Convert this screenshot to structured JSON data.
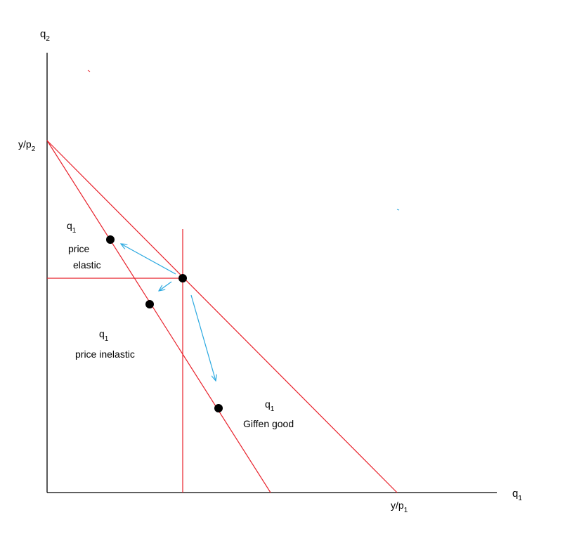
{
  "axes": {
    "y_label": {
      "base": "q",
      "sub": "2"
    },
    "x_label": {
      "base": "q",
      "sub": "1"
    },
    "y_intercept_label": {
      "base": "y/p",
      "sub": "2"
    },
    "x_intercept_label": {
      "base": "y/p",
      "sub": "1"
    }
  },
  "regions": {
    "elastic": {
      "q": "q",
      "sub": "1",
      "text": "price",
      "text2": "elastic"
    },
    "inelastic": {
      "q": "q",
      "sub": "1",
      "text": "price inelastic"
    },
    "giffen": {
      "q": "q",
      "sub": "1",
      "text": "Giffen good"
    }
  },
  "colors": {
    "axis": "#000000",
    "budget_line": "#e8202a",
    "arrow": "#29a8e0",
    "point": "#000000"
  }
}
